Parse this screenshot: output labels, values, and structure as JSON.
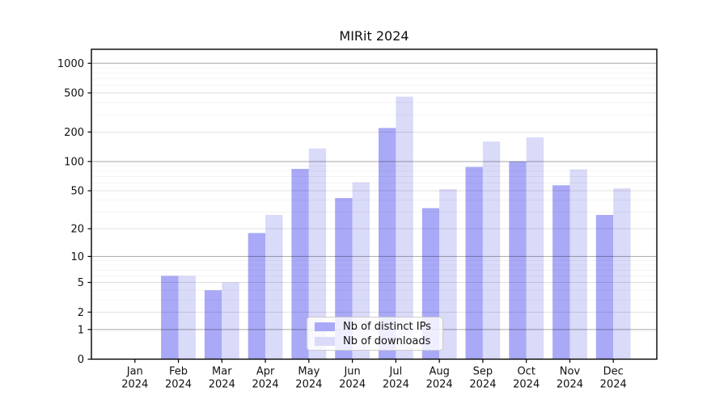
{
  "title": "MIRit 2024",
  "chart_data": {
    "type": "bar",
    "title": "MIRit 2024",
    "x_categories": [
      "Jan",
      "Feb",
      "Mar",
      "Apr",
      "May",
      "Jun",
      "Jul",
      "Aug",
      "Sep",
      "Oct",
      "Nov",
      "Dec"
    ],
    "x_year_label": "2024",
    "series": [
      {
        "name": "Nb of distinct IPs",
        "color": "#a9a9f7",
        "values": [
          0,
          6,
          4,
          18,
          84,
          42,
          220,
          33,
          88,
          100,
          57,
          28
        ]
      },
      {
        "name": "Nb of downloads",
        "color": "#dadaf9",
        "values": [
          0,
          6,
          5,
          28,
          136,
          61,
          458,
          52,
          160,
          176,
          83,
          53
        ]
      }
    ],
    "y_scale": "log1p",
    "y_tick_values": [
      1000,
      500,
      200,
      100,
      50,
      20,
      10,
      5,
      2,
      1,
      0
    ],
    "y_tick_labels": [
      "1000",
      "500",
      "200",
      "100",
      "50",
      "20",
      "10",
      "5",
      "2",
      "1",
      "0"
    ],
    "grid": "both",
    "legend_position": "lower center",
    "legend_entries": [
      "Nb of distinct IPs",
      "Nb of downloads"
    ],
    "axis_color": "#000000",
    "background_color": "#ffffff"
  }
}
